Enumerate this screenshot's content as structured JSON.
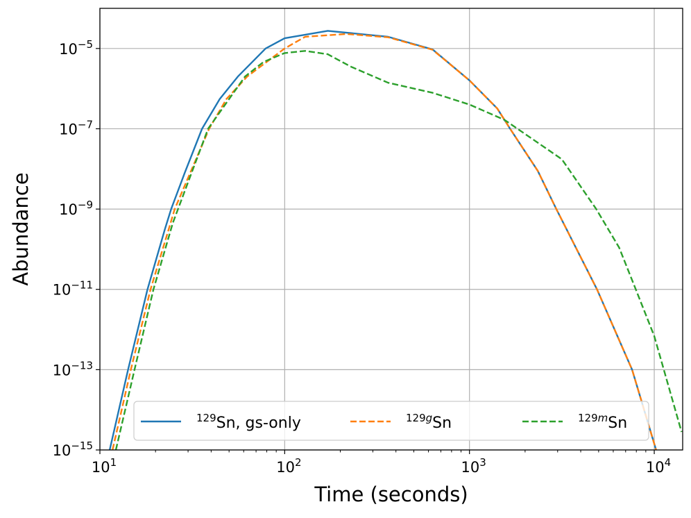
{
  "chart_data": {
    "type": "line",
    "title": "",
    "xlabel": "Time (seconds)",
    "ylabel": "Abundance",
    "xscale": "log",
    "yscale": "log",
    "xlim": [
      10,
      14250
    ],
    "ylim": [
      1e-15,
      0.0001
    ],
    "grid": true,
    "legend_position": "bottom-center",
    "legend_columns": 3,
    "xticks": [
      {
        "value": 10,
        "base": "10",
        "exp": "1"
      },
      {
        "value": 100,
        "base": "10",
        "exp": "2"
      },
      {
        "value": 1000,
        "base": "10",
        "exp": "3"
      },
      {
        "value": 10000,
        "base": "10",
        "exp": "4"
      }
    ],
    "yticks": [
      {
        "value": 1e-15,
        "base": "10",
        "exp": "−15"
      },
      {
        "value": 1e-13,
        "base": "10",
        "exp": "−13"
      },
      {
        "value": 1e-11,
        "base": "10",
        "exp": "−11"
      },
      {
        "value": 1e-09,
        "base": "10",
        "exp": "−9"
      },
      {
        "value": 1e-07,
        "base": "10",
        "exp": "−7"
      },
      {
        "value": 1e-05,
        "base": "10",
        "exp": "−5"
      }
    ],
    "series": [
      {
        "name": "129Sn, gs-only",
        "label": {
          "sup": "129",
          "sup_italic": "",
          "text": "Sn, gs-only"
        },
        "color": "#1f77b4",
        "style": "solid",
        "x": [
          11.3,
          14.2,
          18.1,
          22.5,
          24.3,
          28.8,
          35.7,
          44.5,
          55.8,
          78.9,
          100,
          171,
          363,
          631,
          1000,
          1413,
          1660,
          2344,
          2951,
          4898,
          7586,
          10233
        ],
        "y": [
          1e-15,
          1e-13,
          1e-11,
          3.2e-10,
          1e-09,
          8.1e-09,
          1e-07,
          5.5e-07,
          2e-06,
          1e-05,
          1.8e-05,
          2.75e-05,
          1.95e-05,
          9.5e-06,
          1.6e-06,
          3.2e-07,
          1e-07,
          8.9e-09,
          1e-09,
          1e-11,
          1e-13,
          1e-15
        ]
      },
      {
        "name": "129gSn",
        "label": {
          "sup": "129",
          "sup_italic": "g",
          "text": "Sn"
        },
        "color": "#ff7f0e",
        "style": "dashed",
        "x": [
          11.7,
          14.7,
          18.8,
          23.6,
          25.4,
          39.0,
          48.4,
          62.7,
          100,
          129,
          216,
          363,
          631,
          1000,
          1413,
          1660,
          2344,
          2951,
          4898,
          7586,
          10233
        ],
        "y": [
          1e-15,
          1e-13,
          1e-11,
          3.2e-10,
          1e-09,
          1e-07,
          5.5e-07,
          2e-06,
          1e-05,
          1.95e-05,
          2.3e-05,
          1.9e-05,
          9.3e-06,
          1.6e-06,
          3.2e-07,
          1e-07,
          8.9e-09,
          1e-09,
          1e-11,
          1e-13,
          1e-15
        ]
      },
      {
        "name": "129mSn",
        "label": {
          "sup": "129",
          "sup_italic": "m",
          "text": "Sn"
        },
        "color": "#2ca02c",
        "style": "dashed",
        "x": [
          12.2,
          15.4,
          19.5,
          24.8,
          38.5,
          61.0,
          76.7,
          100,
          129,
          171,
          229,
          363,
          631,
          1000,
          1549,
          1820,
          3162,
          4853,
          6457,
          7943,
          10000,
          14060
        ],
        "y": [
          1e-15,
          1e-13,
          1e-11,
          4.5e-10,
          1e-07,
          2e-06,
          4.6e-06,
          7.7e-06,
          8.7e-06,
          7.2e-06,
          3.5e-06,
          1.4e-06,
          7.9e-07,
          4e-07,
          1.66e-07,
          1e-07,
          1.74e-08,
          1e-09,
          1.1e-10,
          1e-11,
          6.9e-13,
          2.8e-15
        ]
      }
    ]
  }
}
